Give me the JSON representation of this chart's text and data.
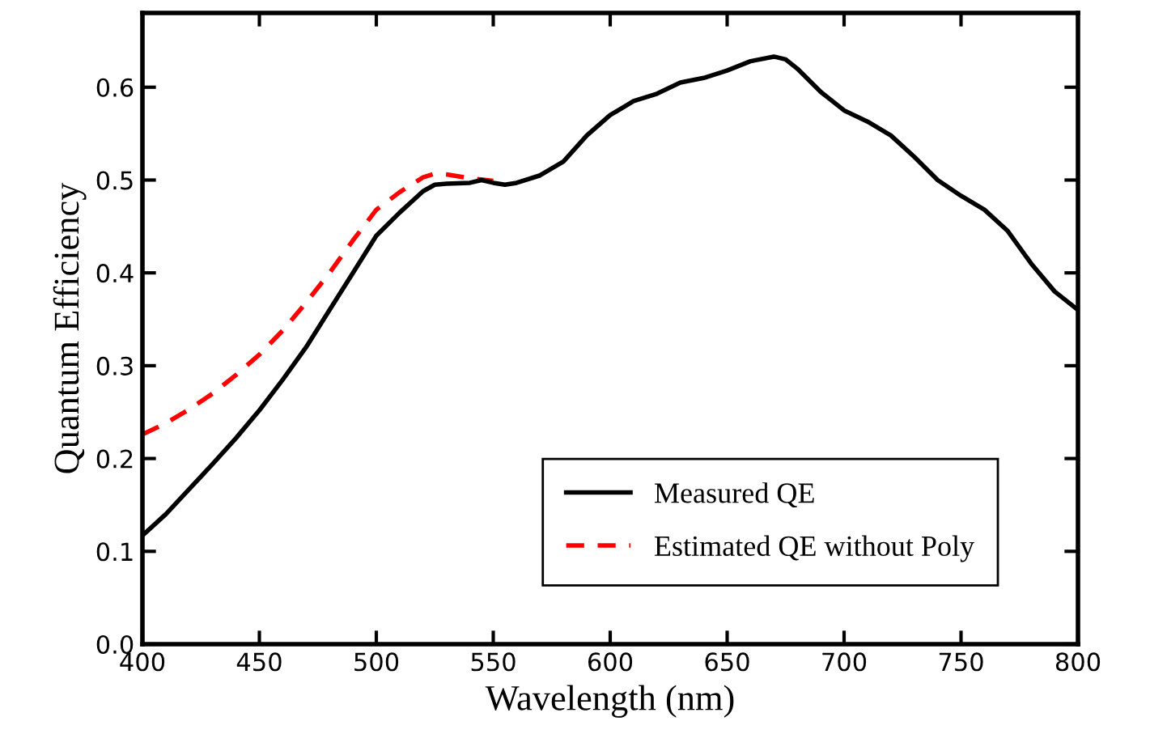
{
  "chart_data": {
    "type": "line",
    "xlabel": "Wavelength (nm)",
    "ylabel": "Quantum Efficiency",
    "xlim": [
      400,
      800
    ],
    "ylim": [
      0,
      0.68
    ],
    "xticks": [
      400,
      450,
      500,
      550,
      600,
      650,
      700,
      750,
      800
    ],
    "yticks": [
      "0.0",
      0.1,
      0.2,
      0.3,
      0.4,
      0.5,
      0.6
    ],
    "grid": false,
    "legend": "bottom right",
    "marker": "none",
    "series": [
      {
        "name": "Measured QE",
        "color": "#000000",
        "line_style": "solid",
        "x": [
          400,
          410,
          420,
          430,
          440,
          450,
          460,
          470,
          480,
          490,
          500,
          510,
          520,
          525,
          530,
          540,
          545,
          550,
          555,
          560,
          570,
          580,
          590,
          600,
          610,
          620,
          630,
          640,
          650,
          660,
          670,
          675,
          680,
          690,
          700,
          710,
          720,
          730,
          740,
          750,
          760,
          770,
          780,
          790,
          800
        ],
        "values": [
          0.117,
          0.14,
          0.167,
          0.194,
          0.222,
          0.252,
          0.285,
          0.32,
          0.36,
          0.4,
          0.44,
          0.465,
          0.488,
          0.495,
          0.496,
          0.497,
          0.5,
          0.497,
          0.495,
          0.497,
          0.505,
          0.52,
          0.548,
          0.57,
          0.585,
          0.593,
          0.605,
          0.61,
          0.618,
          0.628,
          0.633,
          0.63,
          0.62,
          0.595,
          0.575,
          0.563,
          0.548,
          0.525,
          0.5,
          0.483,
          0.468,
          0.445,
          0.41,
          0.38,
          0.36
        ]
      },
      {
        "name": "Estimated QE without Poly",
        "color": "#ff0000",
        "line_style": "dashed",
        "x": [
          400,
          410,
          420,
          430,
          440,
          450,
          460,
          470,
          480,
          490,
          500,
          510,
          520,
          525,
          530,
          540,
          550
        ],
        "values": [
          0.226,
          0.238,
          0.253,
          0.27,
          0.29,
          0.312,
          0.338,
          0.368,
          0.4,
          0.435,
          0.468,
          0.487,
          0.503,
          0.507,
          0.506,
          0.502,
          0.499
        ]
      }
    ]
  }
}
